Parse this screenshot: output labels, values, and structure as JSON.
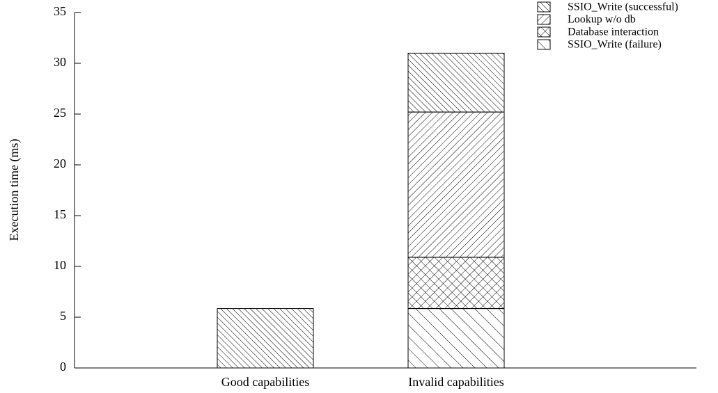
{
  "chart_data": {
    "type": "bar",
    "stacked": true,
    "ylabel": "Execution time (ms)",
    "categories": [
      "Good capabilities",
      "Invalid capabilities"
    ],
    "series": [
      {
        "name": "SSIO_Write (successful)",
        "color": "#000000",
        "values": [
          5.85,
          5.8
        ]
      },
      {
        "name": "Lookup w/o db",
        "color": "#000000",
        "values": [
          null,
          14.3
        ]
      },
      {
        "name": "Database interaction",
        "color": "#000000",
        "values": [
          null,
          5.05
        ]
      },
      {
        "name": "SSIO_Write (failure)",
        "color": "#000000",
        "values": [
          null,
          5.85
        ]
      }
    ],
    "ylim": [
      0,
      35
    ],
    "yticks": [
      0,
      5,
      10,
      15,
      20,
      25,
      30,
      35
    ],
    "legend": "top-right"
  }
}
